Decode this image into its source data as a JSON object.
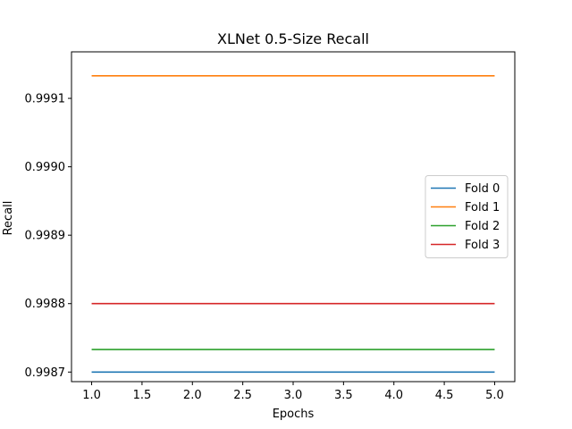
{
  "chart_data": {
    "type": "line",
    "title": "XLNet 0.5-Size Recall",
    "xlabel": "Epochs",
    "ylabel": "Recall",
    "x": [
      1,
      2,
      3,
      4,
      5
    ],
    "xlim": [
      0.8,
      5.2
    ],
    "ylim": [
      0.998686,
      0.999168
    ],
    "xticks": [
      1.0,
      1.5,
      2.0,
      2.5,
      3.0,
      3.5,
      4.0,
      4.5,
      5.0
    ],
    "xtick_labels": [
      "1.0",
      "1.5",
      "2.0",
      "2.5",
      "3.0",
      "3.5",
      "4.0",
      "4.5",
      "5.0"
    ],
    "yticks": [
      0.9987,
      0.9988,
      0.9989,
      0.999,
      0.9991
    ],
    "ytick_labels": [
      "0.9987",
      "0.9988",
      "0.9989",
      "0.9990",
      "0.9991"
    ],
    "grid": false,
    "legend_position": "center-right",
    "series": [
      {
        "name": "Fold 0",
        "color": "#1f77b4",
        "values": [
          0.9987,
          0.9987,
          0.9987,
          0.9987,
          0.9987
        ]
      },
      {
        "name": "Fold 1",
        "color": "#ff7f0e",
        "values": [
          0.999133,
          0.999133,
          0.999133,
          0.999133,
          0.999133
        ]
      },
      {
        "name": "Fold 2",
        "color": "#2ca02c",
        "values": [
          0.998733,
          0.998733,
          0.998733,
          0.998733,
          0.998733
        ]
      },
      {
        "name": "Fold 3",
        "color": "#d62728",
        "values": [
          0.9988,
          0.9988,
          0.9988,
          0.9988,
          0.9988
        ]
      }
    ]
  }
}
